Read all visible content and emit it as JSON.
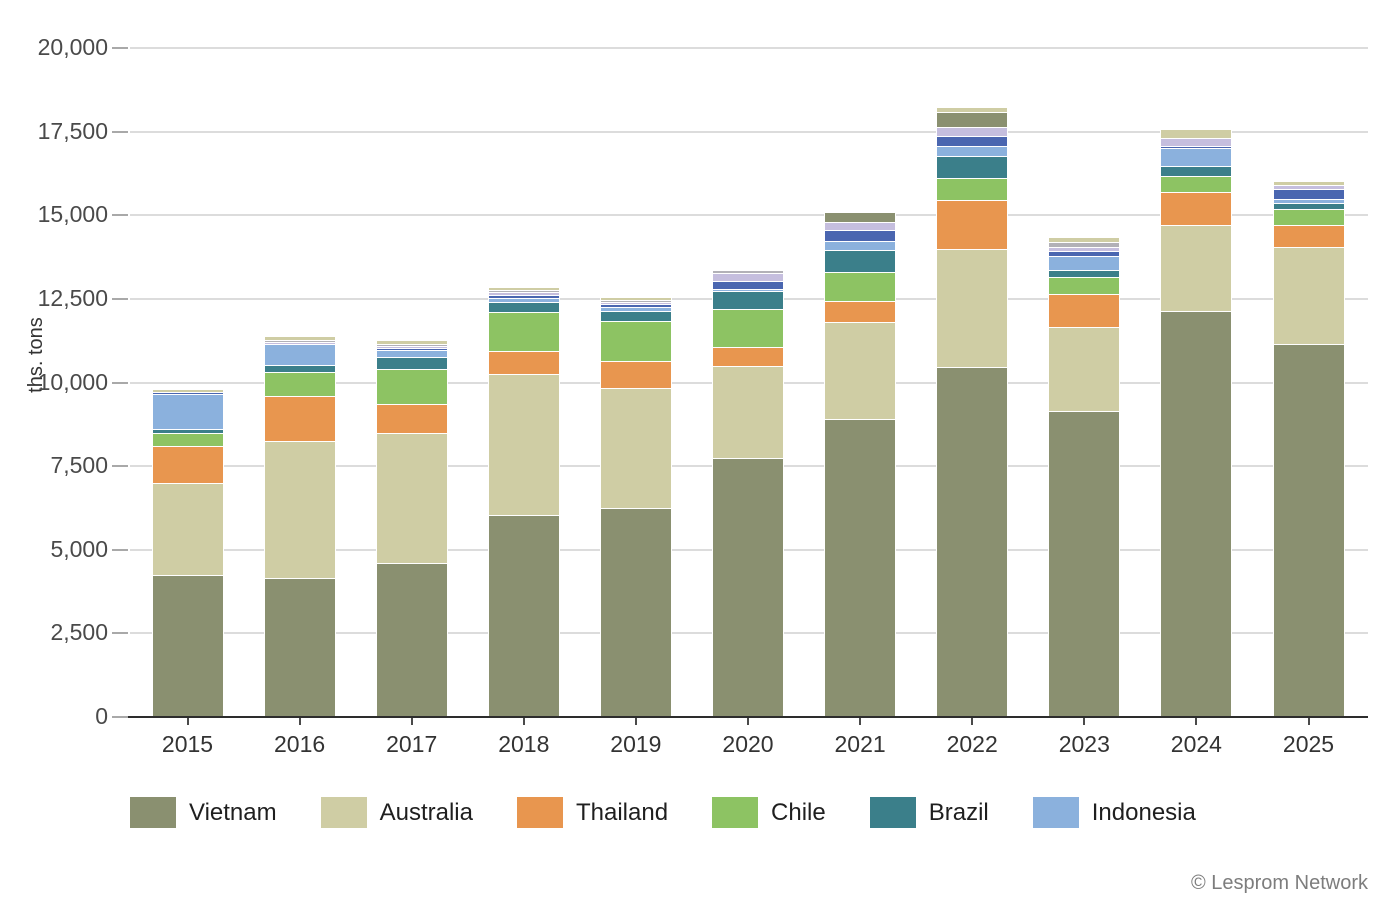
{
  "attribution": "© Lesprom Network",
  "chart_data": {
    "type": "bar",
    "stacked": true,
    "title": "",
    "xlabel": "",
    "ylabel": "ths. tons",
    "ylim": [
      0,
      20000
    ],
    "ytick_step": 2500,
    "grid": true,
    "legend_position": "bottom",
    "yticks": [
      {
        "value": 0,
        "label": "0"
      },
      {
        "value": 2500,
        "label": "2,500"
      },
      {
        "value": 5000,
        "label": "5,000"
      },
      {
        "value": 7500,
        "label": "7,500"
      },
      {
        "value": 10000,
        "label": "10,000"
      },
      {
        "value": 12500,
        "label": "12,500"
      },
      {
        "value": 15000,
        "label": "15,000"
      },
      {
        "value": 17500,
        "label": "17,500"
      },
      {
        "value": 20000,
        "label": "20,000"
      }
    ],
    "categories": [
      "2015",
      "2016",
      "2017",
      "2018",
      "2019",
      "2020",
      "2021",
      "2022",
      "2023",
      "2024",
      "2025"
    ],
    "series": [
      {
        "name": "Vietnam",
        "color": "#8A9070",
        "in_legend": true,
        "values": [
          4250,
          4150,
          4600,
          6050,
          6250,
          7750,
          8900,
          10450,
          9150,
          12150,
          11150
        ]
      },
      {
        "name": "Australia",
        "color": "#CFCDA4",
        "in_legend": true,
        "values": [
          2750,
          4100,
          3900,
          4200,
          3600,
          2750,
          2900,
          3550,
          2500,
          2550,
          2900
        ]
      },
      {
        "name": "Thailand",
        "color": "#E8964F",
        "in_legend": true,
        "values": [
          1100,
          1350,
          850,
          700,
          800,
          550,
          650,
          1450,
          1000,
          1000,
          650
        ]
      },
      {
        "name": "Chile",
        "color": "#8DC363",
        "in_legend": true,
        "values": [
          400,
          700,
          1050,
          1150,
          1200,
          1150,
          850,
          650,
          500,
          470,
          500
        ]
      },
      {
        "name": "Brazil",
        "color": "#3B7F8A",
        "in_legend": true,
        "values": [
          100,
          220,
          350,
          300,
          300,
          550,
          650,
          680,
          220,
          300,
          180
        ]
      },
      {
        "name": "Indonesia",
        "color": "#8BB1DD",
        "in_legend": true,
        "values": [
          1050,
          620,
          220,
          120,
          100,
          60,
          270,
          280,
          400,
          530,
          120
        ]
      },
      {
        "name": "other-1",
        "color": "#4A66B0",
        "in_legend": false,
        "values": [
          60,
          0,
          50,
          90,
          90,
          220,
          330,
          320,
          150,
          70,
          300
        ]
      },
      {
        "name": "other-2",
        "color": "#C5BEDE",
        "in_legend": false,
        "values": [
          0,
          80,
          70,
          110,
          60,
          230,
          240,
          270,
          130,
          230,
          100
        ]
      },
      {
        "name": "other-3",
        "color": "#B2B1B7",
        "in_legend": false,
        "values": [
          0,
          60,
          60,
          60,
          60,
          60,
          0,
          0,
          140,
          0,
          0
        ]
      },
      {
        "name": "other-4",
        "color": "#8A9070",
        "in_legend": false,
        "values": [
          0,
          0,
          0,
          0,
          0,
          0,
          270,
          450,
          0,
          0,
          0
        ]
      },
      {
        "name": "other-5",
        "color": "#CFCDA4",
        "in_legend": false,
        "values": [
          80,
          80,
          100,
          60,
          60,
          0,
          0,
          100,
          130,
          250,
          100
        ]
      }
    ]
  }
}
